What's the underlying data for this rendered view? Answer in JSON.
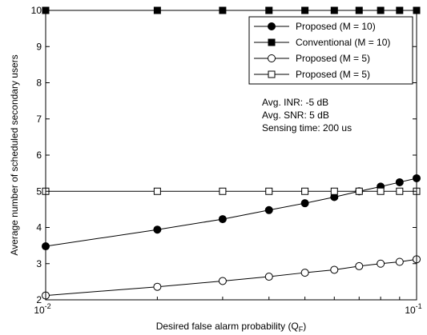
{
  "chart_data": {
    "type": "line",
    "xscale": "log",
    "x": [
      0.01,
      0.02,
      0.03,
      0.04,
      0.05,
      0.06,
      0.07,
      0.08,
      0.09,
      0.1
    ],
    "xlim": [
      0.01,
      0.1
    ],
    "ylim": [
      2,
      10
    ],
    "yticks": [
      "2",
      "3",
      "4",
      "5",
      "6",
      "7",
      "8",
      "9",
      "10"
    ],
    "xticks": [
      {
        "value": 0.01,
        "base": "10",
        "exp": "-2"
      },
      {
        "value": 0.1,
        "base": "10",
        "exp": "-1"
      }
    ],
    "xlabel": "Desired false alarm probability (Q",
    "xlabel_sub": "F",
    "xlabel_end": ")",
    "ylabel": "Average number of scheduled secondary users",
    "grid": false,
    "legend_position": "top-right",
    "series": [
      {
        "name": "Proposed (M = 10)",
        "marker": "circle",
        "filled": true,
        "values": [
          3.48,
          3.94,
          4.23,
          4.48,
          4.67,
          4.84,
          5.0,
          5.13,
          5.25,
          5.36
        ]
      },
      {
        "name": "Conventional (M = 10)",
        "marker": "square",
        "filled": true,
        "values": [
          10,
          10,
          10,
          10,
          10,
          10,
          10,
          10,
          10,
          10
        ]
      },
      {
        "name": "Proposed (M = 5)",
        "marker": "circle",
        "filled": false,
        "values": [
          2.12,
          2.36,
          2.52,
          2.64,
          2.75,
          2.83,
          2.93,
          3.0,
          3.05,
          3.12
        ]
      },
      {
        "name": "Proposed (M = 5)",
        "marker": "square",
        "filled": false,
        "values": [
          5,
          5,
          5,
          5,
          5,
          5,
          5,
          5,
          5,
          5
        ]
      }
    ],
    "annotations": [
      "Avg. INR: -5 dB",
      "Avg. SNR: 5 dB",
      "Sensing time: 200 us"
    ]
  }
}
